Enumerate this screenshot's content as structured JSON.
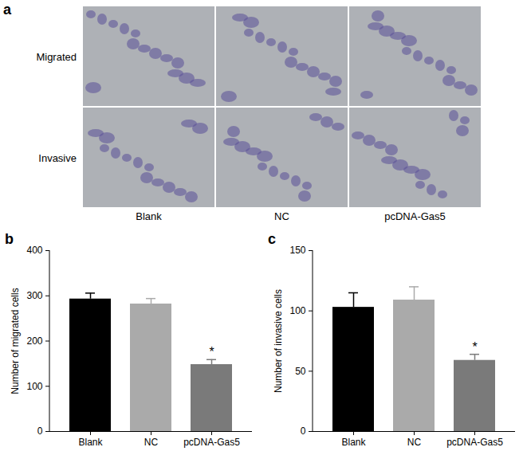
{
  "image_panel": {
    "label": "a",
    "row_labels": [
      "Migrated",
      "Invasive"
    ],
    "column_labels": [
      "Blank",
      "NC",
      "pcDNA-Gas5"
    ]
  },
  "chart_data": [
    {
      "type": "bar",
      "title": "b",
      "categories": [
        "Blank",
        "NC",
        "pcDNA-Gas5"
      ],
      "values": [
        293,
        282,
        148
      ],
      "errors": [
        13,
        12,
        11
      ],
      "colors": [
        "#000000",
        "#aaaaaa",
        "#7a7a7a"
      ],
      "ylabel": "Number of migrated cells",
      "ylim": [
        0,
        400
      ],
      "yticks": [
        0,
        100,
        200,
        300,
        400
      ],
      "annotations": [
        {
          "category": "pcDNA-Gas5",
          "text": "*"
        }
      ]
    },
    {
      "type": "bar",
      "title": "c",
      "categories": [
        "Blank",
        "NC",
        "pcDNA-Gas5"
      ],
      "values": [
        103,
        109,
        59
      ],
      "errors": [
        12,
        11,
        5
      ],
      "colors": [
        "#000000",
        "#aaaaaa",
        "#7a7a7a"
      ],
      "ylabel": "Number of invasive cells",
      "ylim": [
        0,
        150
      ],
      "yticks": [
        0,
        50,
        100,
        150
      ],
      "annotations": [
        {
          "category": "pcDNA-Gas5",
          "text": "*"
        }
      ]
    }
  ]
}
